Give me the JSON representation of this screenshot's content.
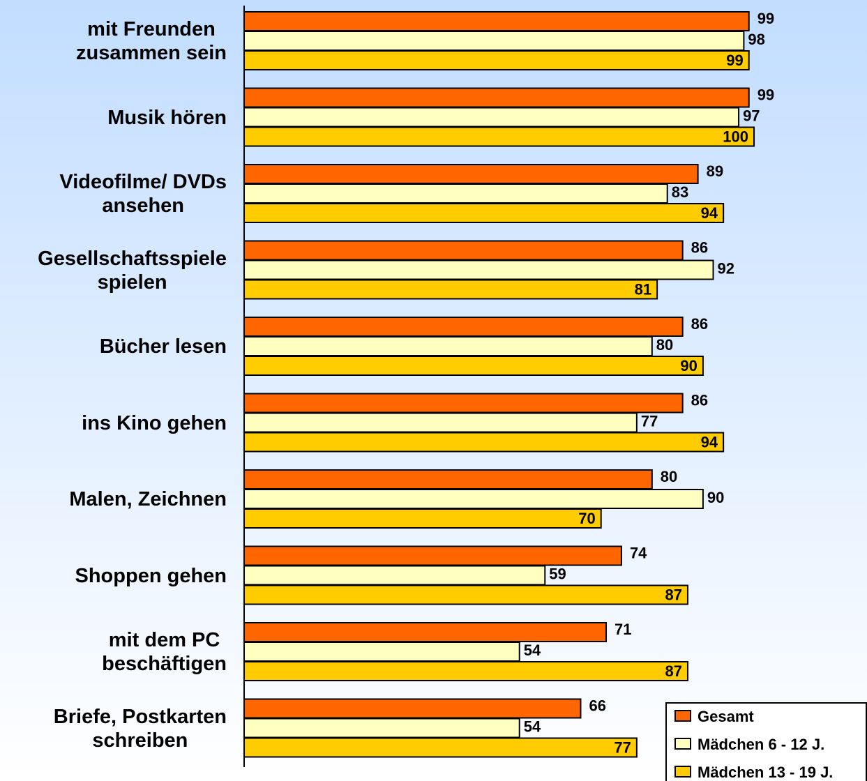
{
  "chart_data": {
    "type": "bar",
    "orientation": "horizontal",
    "categories": [
      "mit Freunden\nzusammen sein",
      "Musik hören",
      "Videofilme/ DVDs\nansehen",
      "Gesellschaftsspiele\nspielen",
      "Bücher lesen",
      "ins Kino gehen",
      "Malen, Zeichnen",
      "Shoppen gehen",
      "mit dem PC\nbeschäftigen",
      "Briefe, Postkarten\nschreiben"
    ],
    "series": [
      {
        "name": "Gesamt",
        "color": "#ff6600",
        "values": [
          99,
          99,
          89,
          86,
          86,
          86,
          80,
          74,
          71,
          66
        ]
      },
      {
        "name": "Mädchen 6 - 12 J.",
        "color": "#ffffc0",
        "values": [
          98,
          97,
          83,
          92,
          80,
          77,
          90,
          59,
          54,
          54
        ]
      },
      {
        "name": "Mädchen 13 - 19 J.",
        "color": "#ffcc00",
        "values": [
          99,
          100,
          94,
          81,
          90,
          94,
          70,
          87,
          87,
          77
        ]
      }
    ],
    "legend": "bottom-right"
  }
}
